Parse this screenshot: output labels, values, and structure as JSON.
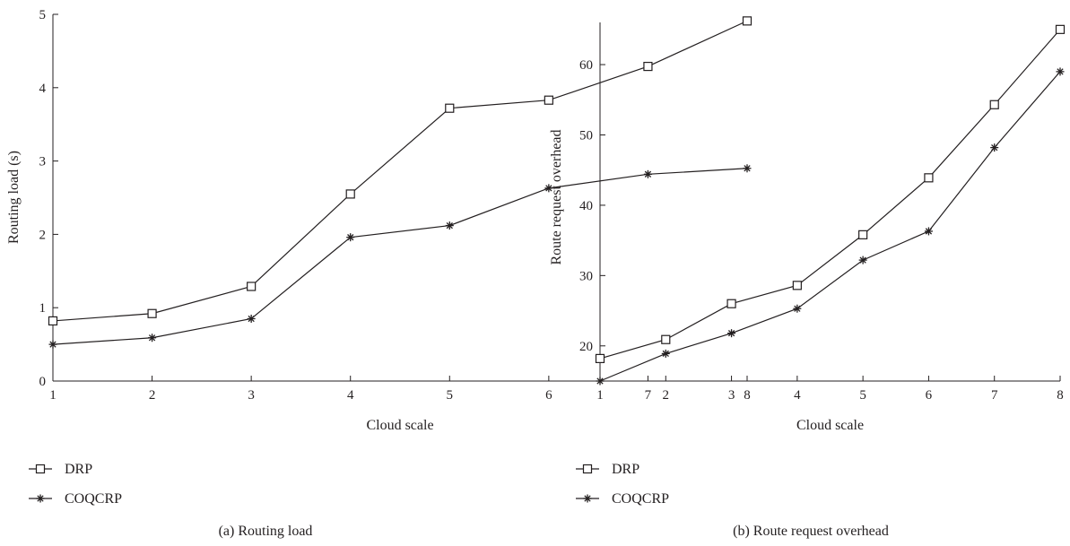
{
  "chart_data": [
    {
      "type": "line",
      "x": [
        1,
        2,
        3,
        4,
        5,
        6,
        7,
        8
      ],
      "xlabel": "Cloud scale",
      "ylabel": "Routing load (s)",
      "xlim": [
        1,
        8
      ],
      "ylim": [
        0,
        5
      ],
      "xticks": [
        "1",
        "2",
        "3",
        "4",
        "5",
        "6",
        "7",
        "8"
      ],
      "yticks": [
        "0",
        "1",
        "2",
        "3",
        "4",
        "5"
      ],
      "grid": false,
      "legend_placement": "below",
      "caption": "(a)  Routing load",
      "series": [
        {
          "name": "DRP",
          "marker": "square",
          "values": [
            0.82,
            0.92,
            1.29,
            2.55,
            3.72,
            3.83,
            4.29,
            4.91
          ]
        },
        {
          "name": "COQCRP",
          "marker": "asterisk",
          "values": [
            0.5,
            0.59,
            0.85,
            1.96,
            2.12,
            2.63,
            2.82,
            2.9
          ]
        }
      ]
    },
    {
      "type": "line",
      "x": [
        1,
        2,
        3,
        4,
        5,
        6,
        7,
        8
      ],
      "xlabel": "Cloud scale",
      "ylabel": "Route request overhead",
      "xlim": [
        1,
        8
      ],
      "ylim": [
        15,
        66
      ],
      "xticks": [
        "1",
        "2",
        "3",
        "4",
        "5",
        "6",
        "7",
        "8"
      ],
      "yticks": [
        "20",
        "30",
        "40",
        "50",
        "60"
      ],
      "grid": false,
      "legend_placement": "below",
      "caption": "(b)  Route request overhead",
      "series": [
        {
          "name": "DRP",
          "marker": "square",
          "values": [
            18.2,
            20.9,
            26.0,
            28.6,
            35.8,
            43.9,
            54.3,
            65.0
          ]
        },
        {
          "name": "COQCRP",
          "marker": "asterisk",
          "values": [
            15.0,
            18.9,
            21.8,
            25.3,
            32.2,
            36.3,
            48.2,
            59.0
          ]
        }
      ]
    }
  ]
}
